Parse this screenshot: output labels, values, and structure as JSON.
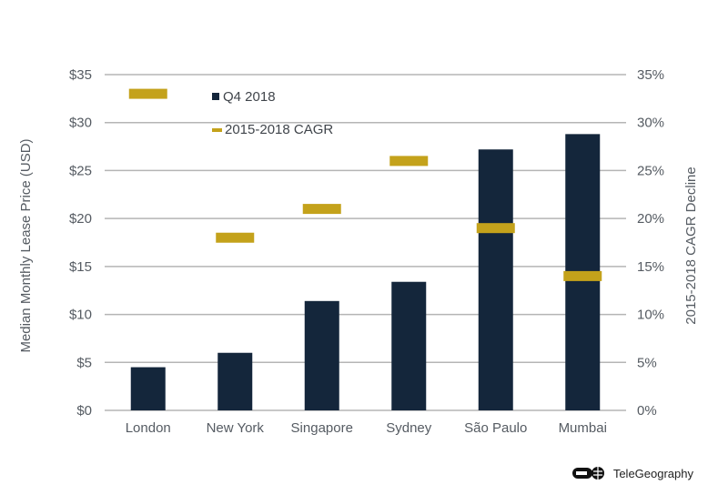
{
  "chart_data": {
    "type": "bar",
    "categories": [
      "London",
      "New York",
      "Singapore",
      "Sydney",
      "São Paulo",
      "Mumbai"
    ],
    "series": [
      {
        "name": "Q4 2018",
        "kind": "bar",
        "axis": "left",
        "values": [
          4.5,
          6.0,
          11.4,
          13.4,
          27.2,
          28.8
        ]
      },
      {
        "name": "2015-2018 CAGR",
        "kind": "marker",
        "axis": "right",
        "values": [
          33,
          18,
          21,
          26,
          19,
          14
        ]
      }
    ],
    "ylabel": "Median Monthly Lease Price (USD)",
    "y2label": "2015-2018 CAGR Decline",
    "ylim": [
      0,
      35
    ],
    "y2lim": [
      0,
      35
    ],
    "yticks": [
      "$0",
      "$5",
      "$10",
      "$15",
      "$20",
      "$25",
      "$30",
      "$35"
    ],
    "y2ticks": [
      "0%",
      "5%",
      "10%",
      "15%",
      "20%",
      "25%",
      "30%",
      "35%"
    ],
    "grid": true,
    "legend_position": "top-left"
  },
  "colors": {
    "bar": "#14263b",
    "marker": "#c4a21b",
    "grid": "#b5b5b5",
    "text": "#555b62"
  },
  "brand": {
    "name": "TeleGeography",
    "logo_icon": "telegeography-logo-icon"
  }
}
